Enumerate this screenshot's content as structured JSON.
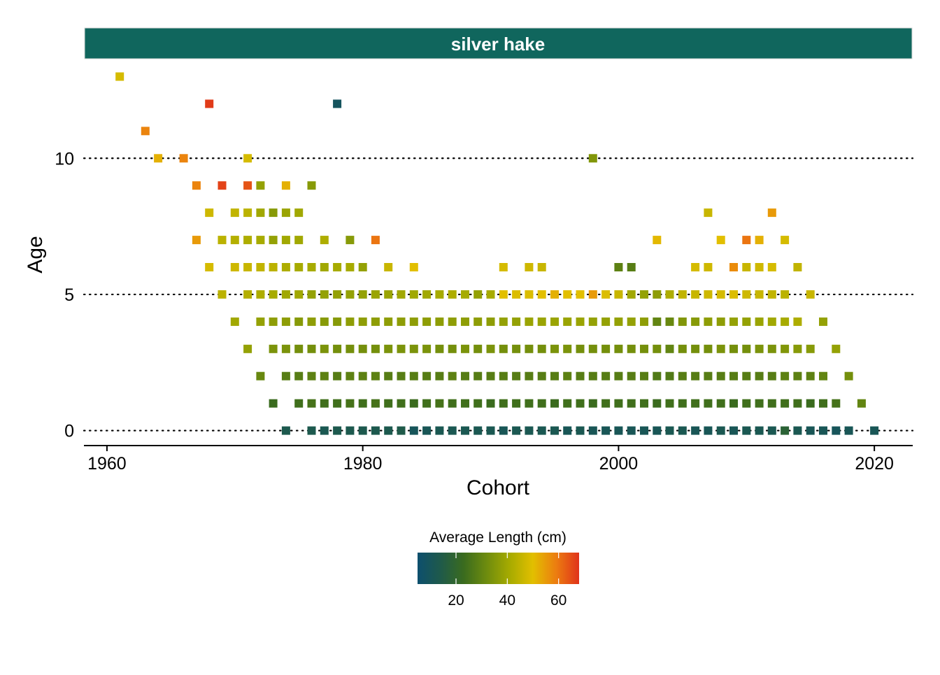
{
  "facet": {
    "label": "silver hake"
  },
  "colors": {
    "strip_bg": "#10665d",
    "strip_text": "#ffffff",
    "axis": "#000000",
    "gridline": "#000000"
  },
  "chart_data": {
    "type": "heatmap",
    "title": "",
    "xlabel": "Cohort",
    "ylabel": "Age",
    "xlim": [
      1958.2,
      2023
    ],
    "ylim": [
      -0.55,
      13.5
    ],
    "x_ticks": [
      1960,
      1980,
      2000,
      2020
    ],
    "x_tick_labels": [
      "1960",
      "1980",
      "2000",
      "2020"
    ],
    "y_ticks": [
      0,
      5,
      10
    ],
    "y_tick_labels": [
      "0",
      "5",
      "10"
    ],
    "y_gridlines": [
      0,
      5,
      10
    ],
    "grid": "dotted horizontal at y ticks",
    "legend": {
      "title": "Average Length (cm)",
      "position": "bottom",
      "range": [
        5,
        68
      ],
      "ticks": [
        20,
        40,
        60
      ],
      "tick_labels": [
        "20",
        "40",
        "60"
      ],
      "palette": [
        "#0d4f6e",
        "#1f5a4a",
        "#3a6b1e",
        "#6e8c0e",
        "#a7ab00",
        "#e2bf00",
        "#ec7d10",
        "#e0331a"
      ]
    },
    "rows": [
      {
        "age": 0,
        "x": [
          1974,
          1976,
          1977,
          1978,
          1979,
          1980,
          1981,
          1982,
          1983,
          1984,
          1985,
          1986,
          1987,
          1988,
          1989,
          1990,
          1991,
          1992,
          1993,
          1994,
          1995,
          1996,
          1997,
          1998,
          1999,
          2000,
          2001,
          2002,
          2003,
          2004,
          2005,
          2006,
          2007,
          2008,
          2009,
          2010,
          2011,
          2012,
          2013,
          2014,
          2015,
          2016,
          2017,
          2018,
          2020
        ],
        "v": [
          13,
          13,
          12,
          13,
          13,
          13,
          13,
          13,
          14,
          10,
          11,
          12,
          12,
          12,
          12,
          12,
          11,
          12,
          12,
          12,
          12,
          11,
          12,
          11,
          11,
          11,
          11,
          11,
          11,
          12,
          12,
          11,
          11,
          12,
          11,
          12,
          12,
          12,
          18,
          12,
          11,
          11,
          10,
          11,
          11
        ]
      },
      {
        "age": 1,
        "x": [
          1973,
          1975,
          1976,
          1977,
          1978,
          1979,
          1980,
          1981,
          1982,
          1983,
          1984,
          1985,
          1986,
          1987,
          1988,
          1989,
          1990,
          1991,
          1992,
          1993,
          1994,
          1995,
          1996,
          1997,
          1998,
          1999,
          2000,
          2001,
          2002,
          2003,
          2004,
          2005,
          2006,
          2007,
          2008,
          2009,
          2010,
          2011,
          2012,
          2013,
          2014,
          2015,
          2016,
          2017,
          2019
        ],
        "v": [
          23,
          24,
          25,
          24,
          24,
          25,
          24,
          25,
          24,
          24,
          23,
          24,
          25,
          24,
          24,
          24,
          23,
          24,
          24,
          24,
          24,
          23,
          24,
          24,
          23,
          24,
          24,
          24,
          24,
          23,
          24,
          24,
          24,
          24,
          24,
          23,
          24,
          24,
          24,
          24,
          24,
          23,
          24,
          25,
          30
        ]
      },
      {
        "age": 2,
        "x": [
          1972,
          1974,
          1975,
          1976,
          1977,
          1978,
          1979,
          1980,
          1981,
          1982,
          1983,
          1984,
          1985,
          1986,
          1987,
          1988,
          1989,
          1990,
          1991,
          1992,
          1993,
          1994,
          1995,
          1996,
          1997,
          1998,
          1999,
          2000,
          2001,
          2002,
          2003,
          2004,
          2005,
          2006,
          2007,
          2008,
          2009,
          2010,
          2011,
          2012,
          2013,
          2014,
          2015,
          2016,
          2018
        ],
        "v": [
          31,
          28,
          28,
          29,
          29,
          28,
          29,
          29,
          29,
          28,
          28,
          28,
          28,
          28,
          29,
          28,
          28,
          28,
          28,
          28,
          28,
          28,
          28,
          29,
          28,
          28,
          28,
          28,
          28,
          28,
          27,
          27,
          28,
          28,
          28,
          28,
          28,
          28,
          28,
          28,
          29,
          29,
          29,
          30,
          33
        ]
      },
      {
        "age": 3,
        "x": [
          1971,
          1973,
          1974,
          1975,
          1976,
          1977,
          1978,
          1979,
          1980,
          1981,
          1982,
          1983,
          1984,
          1985,
          1986,
          1987,
          1988,
          1989,
          1990,
          1991,
          1992,
          1993,
          1994,
          1995,
          1996,
          1997,
          1998,
          1999,
          2000,
          2001,
          2002,
          2003,
          2004,
          2005,
          2006,
          2007,
          2008,
          2009,
          2010,
          2011,
          2012,
          2013,
          2014,
          2015,
          2017
        ],
        "v": [
          38,
          34,
          34,
          33,
          33,
          34,
          33,
          33,
          33,
          33,
          34,
          34,
          34,
          34,
          33,
          33,
          34,
          33,
          34,
          33,
          33,
          33,
          33,
          34,
          34,
          33,
          33,
          33,
          33,
          33,
          33,
          33,
          30,
          33,
          33,
          33,
          34,
          33,
          33,
          34,
          34,
          35,
          36,
          36,
          38
        ]
      },
      {
        "age": 4,
        "x": [
          1970,
          1972,
          1973,
          1974,
          1975,
          1976,
          1977,
          1978,
          1979,
          1980,
          1981,
          1982,
          1983,
          1984,
          1985,
          1986,
          1987,
          1988,
          1989,
          1990,
          1991,
          1992,
          1993,
          1994,
          1995,
          1996,
          1997,
          1998,
          1999,
          2000,
          2001,
          2002,
          2003,
          2004,
          2005,
          2006,
          2007,
          2008,
          2009,
          2010,
          2011,
          2012,
          2013,
          2014,
          2016
        ],
        "v": [
          40,
          38,
          37,
          37,
          36,
          37,
          36,
          36,
          37,
          37,
          37,
          37,
          37,
          37,
          37,
          37,
          37,
          37,
          37,
          37,
          38,
          38,
          39,
          39,
          39,
          39,
          39,
          38,
          38,
          38,
          38,
          37,
          30,
          31,
          35,
          36,
          37,
          37,
          38,
          38,
          39,
          40,
          41,
          42,
          38
        ]
      },
      {
        "age": 5,
        "x": [
          1969,
          1971,
          1972,
          1973,
          1974,
          1975,
          1976,
          1977,
          1978,
          1979,
          1980,
          1981,
          1982,
          1983,
          1984,
          1985,
          1986,
          1987,
          1988,
          1989,
          1990,
          1991,
          1992,
          1993,
          1994,
          1995,
          1996,
          1997,
          1998,
          1999,
          2000,
          2001,
          2002,
          2003,
          2004,
          2005,
          2006,
          2007,
          2008,
          2009,
          2010,
          2011,
          2012,
          2013,
          2015
        ],
        "v": [
          44,
          43,
          42,
          41,
          40,
          40,
          38,
          38,
          38,
          38,
          38,
          39,
          39,
          40,
          40,
          40,
          41,
          42,
          41,
          38,
          41,
          50,
          49,
          49,
          50,
          52,
          50,
          50,
          55,
          49,
          46,
          40,
          38,
          37,
          42,
          45,
          46,
          47,
          48,
          49,
          47,
          46,
          45,
          44,
          46
        ]
      },
      {
        "age": 6,
        "x": [
          1968,
          1970,
          1971,
          1972,
          1973,
          1974,
          1975,
          1976,
          1977,
          1978,
          1979,
          1980,
          1982,
          1984,
          1991,
          1993,
          1994,
          2000,
          2001,
          2006,
          2007,
          2009,
          2010,
          2011,
          2012,
          2014
        ],
        "v": [
          48,
          47,
          46,
          45,
          44,
          42,
          41,
          41,
          40,
          41,
          41,
          38,
          46,
          50,
          48,
          47,
          46,
          29,
          28,
          48,
          47,
          57,
          46,
          47,
          48,
          45
        ]
      },
      {
        "age": 7,
        "x": [
          1967,
          1969,
          1970,
          1971,
          1972,
          1973,
          1974,
          1975,
          1977,
          1979,
          1981,
          2003,
          2008,
          2010,
          2011,
          2013
        ],
        "v": [
          55,
          44,
          43,
          42,
          41,
          38,
          40,
          40,
          42,
          36,
          60,
          51,
          50,
          60,
          52,
          48
        ]
      },
      {
        "age": 8,
        "x": [
          1968,
          1970,
          1971,
          1972,
          1973,
          1974,
          1975,
          2007,
          2012
        ],
        "v": [
          47,
          45,
          44,
          40,
          36,
          39,
          40,
          46,
          55
        ]
      },
      {
        "age": 9,
        "x": [
          1967,
          1969,
          1971,
          1972,
          1974,
          1976
        ],
        "v": [
          58,
          66,
          64,
          38,
          52,
          36
        ]
      },
      {
        "age": 10,
        "x": [
          1964,
          1966,
          1971,
          1998
        ],
        "v": [
          52,
          58,
          48,
          35
        ]
      },
      {
        "age": 11,
        "x": [
          1963
        ],
        "v": [
          58
        ]
      },
      {
        "age": 12,
        "x": [
          1968,
          1978
        ],
        "v": [
          67,
          9
        ]
      },
      {
        "age": 13,
        "x": [
          1961
        ],
        "v": [
          48
        ]
      }
    ]
  }
}
